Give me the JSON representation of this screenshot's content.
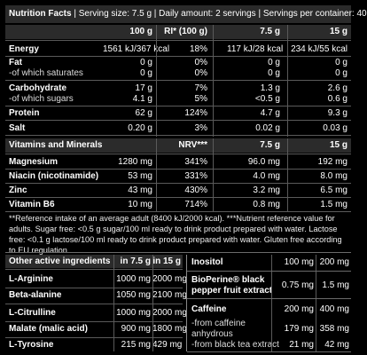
{
  "header": {
    "title": "Nutrition Facts",
    "serving_size": "Serving size: 7.5 g",
    "daily_amount": "Daily amount: 2 servings",
    "servings_per_container": "Servings per container: 40"
  },
  "nutrition": {
    "columns": [
      "100 g",
      "RI* (100 g)",
      "7.5 g",
      "15 g"
    ],
    "rows": [
      {
        "name": "Energy",
        "v100": "1561 kJ/367 kcal",
        "ri": "18%",
        "v75": "117 kJ/28 kcal",
        "v15": "234 kJ/55 kcal",
        "bold": true
      },
      {
        "name": "Fat",
        "v100": "0 g",
        "ri": "0%",
        "v75": "0 g",
        "v15": "0 g",
        "bold": true
      },
      {
        "name": "-of which saturates",
        "v100": "0 g",
        "ri": "0%",
        "v75": "0 g",
        "v15": "0 g",
        "bold": false
      },
      {
        "name": "Carbohydrate",
        "v100": "17 g",
        "ri": "7%",
        "v75": "1.3 g",
        "v15": "2.6 g",
        "bold": true
      },
      {
        "name": "-of which sugars",
        "v100": "4.1 g",
        "ri": "5%",
        "v75": "<0.5 g",
        "v15": "0.6 g",
        "bold": false
      },
      {
        "name": "Protein",
        "v100": "62 g",
        "ri": "124%",
        "v75": "4.7 g",
        "v15": "9.3 g",
        "bold": true
      },
      {
        "name": "Salt",
        "v100": "0.20 g",
        "ri": "3%",
        "v75": "0.02 g",
        "v15": "0.03 g",
        "bold": true
      }
    ]
  },
  "vitamins": {
    "columns": [
      "Vitamins and Minerals",
      "NRV***",
      "7.5 g",
      "15 g"
    ],
    "rows": [
      {
        "name": "Magnesium",
        "v100": "1280 mg",
        "nrv": "341%",
        "v75": "96.0 mg",
        "v15": "192 mg"
      },
      {
        "name": "Niacin (nicotinamide)",
        "v100": "53 mg",
        "nrv": "331%",
        "v75": "4.0 mg",
        "v15": "8.0 mg"
      },
      {
        "name": "Zinc",
        "v100": "43 mg",
        "nrv": "430%",
        "v75": "3.2 mg",
        "v15": "6.5 mg"
      },
      {
        "name": "Vitamin B6",
        "v100": "10 mg",
        "nrv": "714%",
        "v75": "0.8 mg",
        "v15": "1.5 mg"
      }
    ]
  },
  "notes": {
    "text": "**Reference intake of an average adult (8400 kJ/2000 kcal). ***Nutrient reference value for adults. Sugar free: <0.5 g sugar/100 ml ready to drink product prepared with water. Lactose free: <0.1 g lactose/100 ml ready to drink product prepared with water. Gluten free according to EU regulation."
  },
  "other": {
    "columns": [
      "Other active ingredients",
      "in 7.5 g",
      "in 15 g"
    ],
    "rows": [
      {
        "name": "L-Arginine",
        "v75": "1000 mg",
        "v15": "2000 mg"
      },
      {
        "name": "Beta-alanine",
        "v75": "1050 mg",
        "v15": "2100 mg"
      },
      {
        "name": "L-Citrulline",
        "v75": "1000 mg",
        "v15": "2000 mg"
      },
      {
        "name": "Malate (malic acid)",
        "v75": "900 mg",
        "v15": "1800 mg"
      },
      {
        "name": "L-Tyrosine",
        "v75": "215 mg",
        "v15": "429 mg"
      }
    ]
  },
  "right": {
    "rows": [
      {
        "name": "Inositol",
        "v75": "100 mg",
        "v15": "200 mg",
        "bold": true
      },
      {
        "name": "BioPerine® black",
        "name2": "pepper fruit extract",
        "v75": "0.75 mg",
        "v15": "1.5 mg",
        "bold": true
      },
      {
        "name": "Caffeine",
        "v75": "200 mg",
        "v15": "400 mg",
        "bold": true
      },
      {
        "name": "-from caffeine",
        "name2": "anhydrous",
        "v75": "179 mg",
        "v15": "358 mg",
        "bold": false
      },
      {
        "name": "-from black tea extract",
        "v75": "21 mg",
        "v15": "42 mg",
        "bold": false
      }
    ]
  }
}
